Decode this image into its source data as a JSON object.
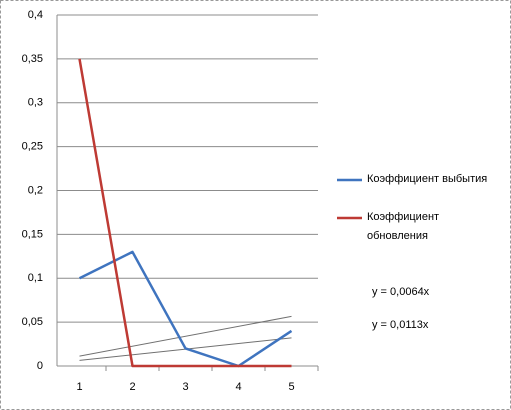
{
  "chart_data": {
    "type": "line",
    "categories": [
      "1",
      "2",
      "3",
      "4",
      "5"
    ],
    "series": [
      {
        "name": "Коэффициент выбытия",
        "color": "#3f74bf",
        "values": [
          0.1,
          0.13,
          0.02,
          0,
          0.04
        ]
      },
      {
        "name": "Коэффициент обновления",
        "color": "#be3a34",
        "values": [
          0.35,
          0,
          0,
          0,
          0
        ]
      }
    ],
    "trendlines": [
      {
        "slope": 0.0064,
        "label": "y = 0,0064x"
      },
      {
        "slope": 0.0113,
        "label": "y = 0,0113x"
      }
    ],
    "trendline_color": "#707070",
    "ylim": [
      0,
      0.4
    ],
    "yticks": [
      0,
      {
        "value": 0.05,
        "label": "0,05"
      },
      {
        "value": 0.1,
        "label": "0,1"
      },
      {
        "value": 0.15,
        "label": "0,15"
      },
      {
        "value": 0.2,
        "label": "0,2"
      },
      {
        "value": 0.25,
        "label": "0,25"
      },
      {
        "value": 0.3,
        "label": "0,3"
      },
      {
        "value": 0.35,
        "label": "0,35"
      },
      {
        "value": 0.4,
        "label": "0,4"
      }
    ],
    "grid": true
  }
}
